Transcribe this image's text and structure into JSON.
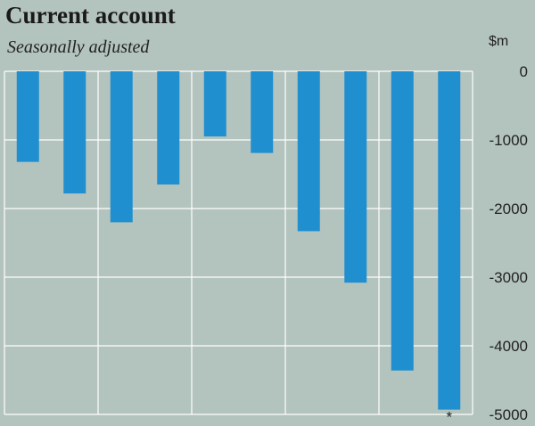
{
  "header": {
    "title": "Current account",
    "subtitle": "Seasonally adjusted",
    "unit": "$m"
  },
  "colors": {
    "background": "#b3c3be",
    "bar": "#1f8fcf",
    "grid": "#ffffff",
    "text": "#222222"
  },
  "chart_data": {
    "type": "bar",
    "title": "Current account",
    "subtitle": "Seasonally adjusted",
    "ylabel": "$m",
    "ylim": [
      -5000,
      0
    ],
    "yticks": [
      0,
      -1000,
      -2000,
      -3000,
      -4000,
      -5000
    ],
    "ytick_labels": [
      "0",
      "-1000",
      "-2000",
      "-3000",
      "-4000",
      "-5000"
    ],
    "grid": true,
    "values": [
      -1320,
      -1780,
      -2200,
      -1650,
      -950,
      -1190,
      -2330,
      -3080,
      -4360,
      -4930
    ],
    "annotations": [
      {
        "bar_index": 9,
        "text": "*"
      }
    ]
  }
}
